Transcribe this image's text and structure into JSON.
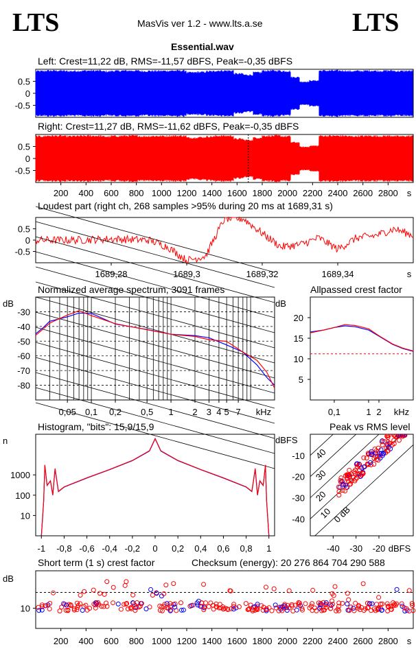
{
  "header": {
    "logo_left": "LTS",
    "logo_right": "LTS",
    "app_title": "MasVis ver 1.2 - www.lts.a.se",
    "file_name": "Essential.wav"
  },
  "colors": {
    "left": "#0000ff",
    "right": "#ff0000",
    "axis": "#000000",
    "dashed": "#000000"
  },
  "chart_data": [
    {
      "type": "area",
      "name": "left-waveform",
      "title": "Left: Crest=11,22 dB, RMS=-11,57 dBFS, Peak=-0,35 dBFS",
      "yticks": [
        "0.5",
        "0",
        "-0.5"
      ],
      "ylim": [
        -1,
        1
      ],
      "duration_s": 3000,
      "envelope": [
        0.96,
        0.98,
        0.98,
        0.96,
        0.97,
        0.98,
        0.98,
        0.95,
        0.97,
        0.98,
        0.98,
        0.96,
        0.97,
        0.97,
        0.98,
        0.98,
        0.9,
        0.92,
        0.95,
        0.98,
        0.98,
        0.85,
        0.8,
        0.9,
        0.98,
        0.98,
        0.96,
        0.7,
        0.5,
        0.55,
        0.98,
        0.98,
        0.98,
        0.96,
        0.97,
        0.98,
        0.97,
        0.98,
        0.96,
        0.97
      ]
    },
    {
      "type": "area",
      "name": "right-waveform",
      "title": "Right: Crest=11,27 dB, RMS=-11,62 dBFS, Peak=-0,35 dBFS",
      "yticks": [
        "0.5",
        "0",
        "-0.5"
      ],
      "ylim": [
        -1,
        1
      ],
      "duration_s": 3000,
      "xticks": [
        "200",
        "400",
        "600",
        "800",
        "1000",
        "1200",
        "1400",
        "1600",
        "1800",
        "2000",
        "2200",
        "2400",
        "2600",
        "2800"
      ],
      "xunit": "s",
      "marker_s": 1689.31,
      "envelope": [
        0.96,
        0.98,
        0.98,
        0.96,
        0.97,
        0.98,
        0.98,
        0.95,
        0.97,
        0.98,
        0.98,
        0.96,
        0.97,
        0.97,
        0.98,
        0.98,
        0.9,
        0.92,
        0.95,
        0.98,
        0.98,
        0.85,
        0.8,
        0.9,
        0.98,
        0.98,
        0.96,
        0.7,
        0.5,
        0.55,
        0.98,
        0.98,
        0.98,
        0.96,
        0.97,
        0.98,
        0.97,
        0.98,
        0.96,
        0.97
      ]
    },
    {
      "type": "line",
      "name": "loudest-part",
      "title": "Loudest part (right ch, 268 samples >95% during 20 ms at 1689,31 s)",
      "yticks": [
        "0.5",
        "0",
        "-0.5"
      ],
      "ylim": [
        -1,
        1
      ],
      "xlim": [
        1689.26,
        1689.36
      ],
      "xticks": [
        "1689,28",
        "1689,3",
        "1689,32",
        "1689,34"
      ],
      "xticks_values": [
        1689.28,
        1689.3,
        1689.32,
        1689.34
      ],
      "xunit": "s",
      "envelope": [
        [
          1689.26,
          0.0
        ],
        [
          1689.27,
          0.0
        ],
        [
          1689.28,
          0.05
        ],
        [
          1689.29,
          0.0
        ],
        [
          1689.295,
          -0.3
        ],
        [
          1689.3,
          -0.9
        ],
        [
          1689.305,
          -0.7
        ],
        [
          1689.31,
          0.95
        ],
        [
          1689.315,
          0.95
        ],
        [
          1689.32,
          0.3
        ],
        [
          1689.325,
          -0.3
        ],
        [
          1689.33,
          -0.2
        ],
        [
          1689.335,
          0.1
        ],
        [
          1689.34,
          -0.4
        ],
        [
          1689.345,
          0.1
        ],
        [
          1689.35,
          0.2
        ],
        [
          1689.355,
          0.5
        ],
        [
          1689.36,
          0.2
        ]
      ]
    },
    {
      "type": "line",
      "name": "average-spectrum",
      "title": "Normalized average spectrum, 3091 frames",
      "ylabel": "dB",
      "yticks": [
        "-30",
        "-40",
        "-50",
        "-60",
        "-70",
        "-80"
      ],
      "ylim": [
        -90,
        -20
      ],
      "xticks": [
        "0,05",
        "0,1",
        "0,2",
        "0,5",
        "1",
        "2",
        "3",
        "4",
        "5",
        "7"
      ],
      "xticks_values": [
        0.05,
        0.1,
        0.2,
        0.5,
        1,
        2,
        3,
        4,
        5,
        7
      ],
      "xunit": "kHz",
      "xlim": [
        0.02,
        20
      ],
      "series": [
        {
          "color": "left",
          "points": [
            [
              0.02,
              -45
            ],
            [
              0.025,
              -40
            ],
            [
              0.03,
              -37
            ],
            [
              0.05,
              -33
            ],
            [
              0.07,
              -31
            ],
            [
              0.1,
              -32
            ],
            [
              0.2,
              -38
            ],
            [
              0.5,
              -43
            ],
            [
              1,
              -45
            ],
            [
              2,
              -46
            ],
            [
              3,
              -48
            ],
            [
              5,
              -52
            ],
            [
              8,
              -58
            ],
            [
              12,
              -66
            ],
            [
              16,
              -74
            ],
            [
              20,
              -80
            ]
          ]
        },
        {
          "color": "right",
          "points": [
            [
              0.02,
              -46
            ],
            [
              0.025,
              -41
            ],
            [
              0.03,
              -37
            ],
            [
              0.05,
              -32
            ],
            [
              0.07,
              -30
            ],
            [
              0.1,
              -32
            ],
            [
              0.2,
              -38
            ],
            [
              0.5,
              -43
            ],
            [
              1,
              -45
            ],
            [
              2,
              -46
            ],
            [
              3,
              -48
            ],
            [
              5,
              -51
            ],
            [
              8,
              -57
            ],
            [
              12,
              -64
            ],
            [
              16,
              -72
            ],
            [
              20,
              -82
            ]
          ]
        }
      ]
    },
    {
      "type": "line",
      "name": "allpassed-crest",
      "title": "Allpassed crest factor",
      "ylabel": "dB",
      "yticks": [
        "20",
        "15",
        "10",
        "5"
      ],
      "ylim": [
        0,
        25
      ],
      "xticks": [
        "0,1",
        "1",
        "2",
        "kHz"
      ],
      "xticks_values": [
        0.1,
        1,
        2
      ],
      "xlim": [
        0.02,
        20
      ],
      "reference_db": 11.2,
      "series": [
        {
          "color": "left",
          "points": [
            [
              0.02,
              16.5
            ],
            [
              0.05,
              17
            ],
            [
              0.1,
              17.6
            ],
            [
              0.2,
              18
            ],
            [
              0.4,
              17.8
            ],
            [
              1,
              17
            ],
            [
              2,
              15.5
            ],
            [
              5,
              13.5
            ],
            [
              10,
              12.5
            ],
            [
              20,
              11.8
            ]
          ]
        },
        {
          "color": "right",
          "points": [
            [
              0.02,
              16.3
            ],
            [
              0.05,
              17
            ],
            [
              0.1,
              17.6
            ],
            [
              0.2,
              18.3
            ],
            [
              0.4,
              18.1
            ],
            [
              1,
              17.3
            ],
            [
              2,
              15.6
            ],
            [
              5,
              13.6
            ],
            [
              10,
              12.6
            ],
            [
              20,
              11.9
            ]
          ]
        }
      ]
    },
    {
      "type": "line",
      "name": "histogram",
      "title": "Histogram, \"bits\": 15,9/15,9",
      "ylabel": "n",
      "yticks": [
        "1000",
        "100",
        "10"
      ],
      "xticks": [
        "-1",
        "-0,8",
        "-0,6",
        "-0,4",
        "-0,2",
        "0",
        "0,2",
        "0,4",
        "0,6",
        "0,8",
        "1"
      ],
      "xlim": [
        -1.05,
        1.05
      ],
      "ylog": [
        1,
        100000
      ],
      "profile": [
        [
          -1,
          1
        ],
        [
          -0.98,
          50
        ],
        [
          -0.97,
          3000
        ],
        [
          -0.95,
          300
        ],
        [
          -0.92,
          500
        ],
        [
          -0.9,
          100
        ],
        [
          -0.88,
          2000
        ],
        [
          -0.85,
          150
        ],
        [
          -0.8,
          250
        ],
        [
          -0.6,
          700
        ],
        [
          -0.4,
          1800
        ],
        [
          -0.2,
          5000
        ],
        [
          -0.05,
          15000
        ],
        [
          0,
          60000
        ],
        [
          0.05,
          15000
        ],
        [
          0.2,
          5000
        ],
        [
          0.4,
          1800
        ],
        [
          0.6,
          700
        ],
        [
          0.8,
          250
        ],
        [
          0.85,
          150
        ],
        [
          0.88,
          2000
        ],
        [
          0.9,
          100
        ],
        [
          0.92,
          500
        ],
        [
          0.95,
          300
        ],
        [
          0.97,
          3000
        ],
        [
          0.98,
          50
        ],
        [
          1,
          1
        ]
      ]
    },
    {
      "type": "scatter",
      "name": "peak-vs-rms",
      "title": "Peak vs RMS level",
      "ylabel": "dBFS",
      "xlabel": "dBFS",
      "yticks": [
        "-10",
        "-20",
        "-30",
        "-40"
      ],
      "xticks": [
        "-40",
        "-30",
        "-20"
      ],
      "xlim": [
        -50,
        -5
      ],
      "ylim": [
        -48,
        0
      ],
      "diagonal_labels": [
        "40",
        "30",
        "20",
        "10",
        "0 dB"
      ]
    },
    {
      "type": "scatter",
      "name": "short-term-crest",
      "title": "Short term (1 s) crest factor",
      "checksum_label": "Checksum (energy):  20 276 864 704 290 588",
      "ylabel": "dB",
      "yticks": [
        "10"
      ],
      "ylim": [
        3,
        23
      ],
      "reference_db": 15.5,
      "xticks": [
        "200",
        "400",
        "600",
        "800",
        "1000",
        "1200",
        "1400",
        "1600",
        "1800",
        "2000",
        "2200",
        "2400",
        "2600",
        "2800"
      ],
      "xunit": "s",
      "duration_s": 3000
    }
  ]
}
